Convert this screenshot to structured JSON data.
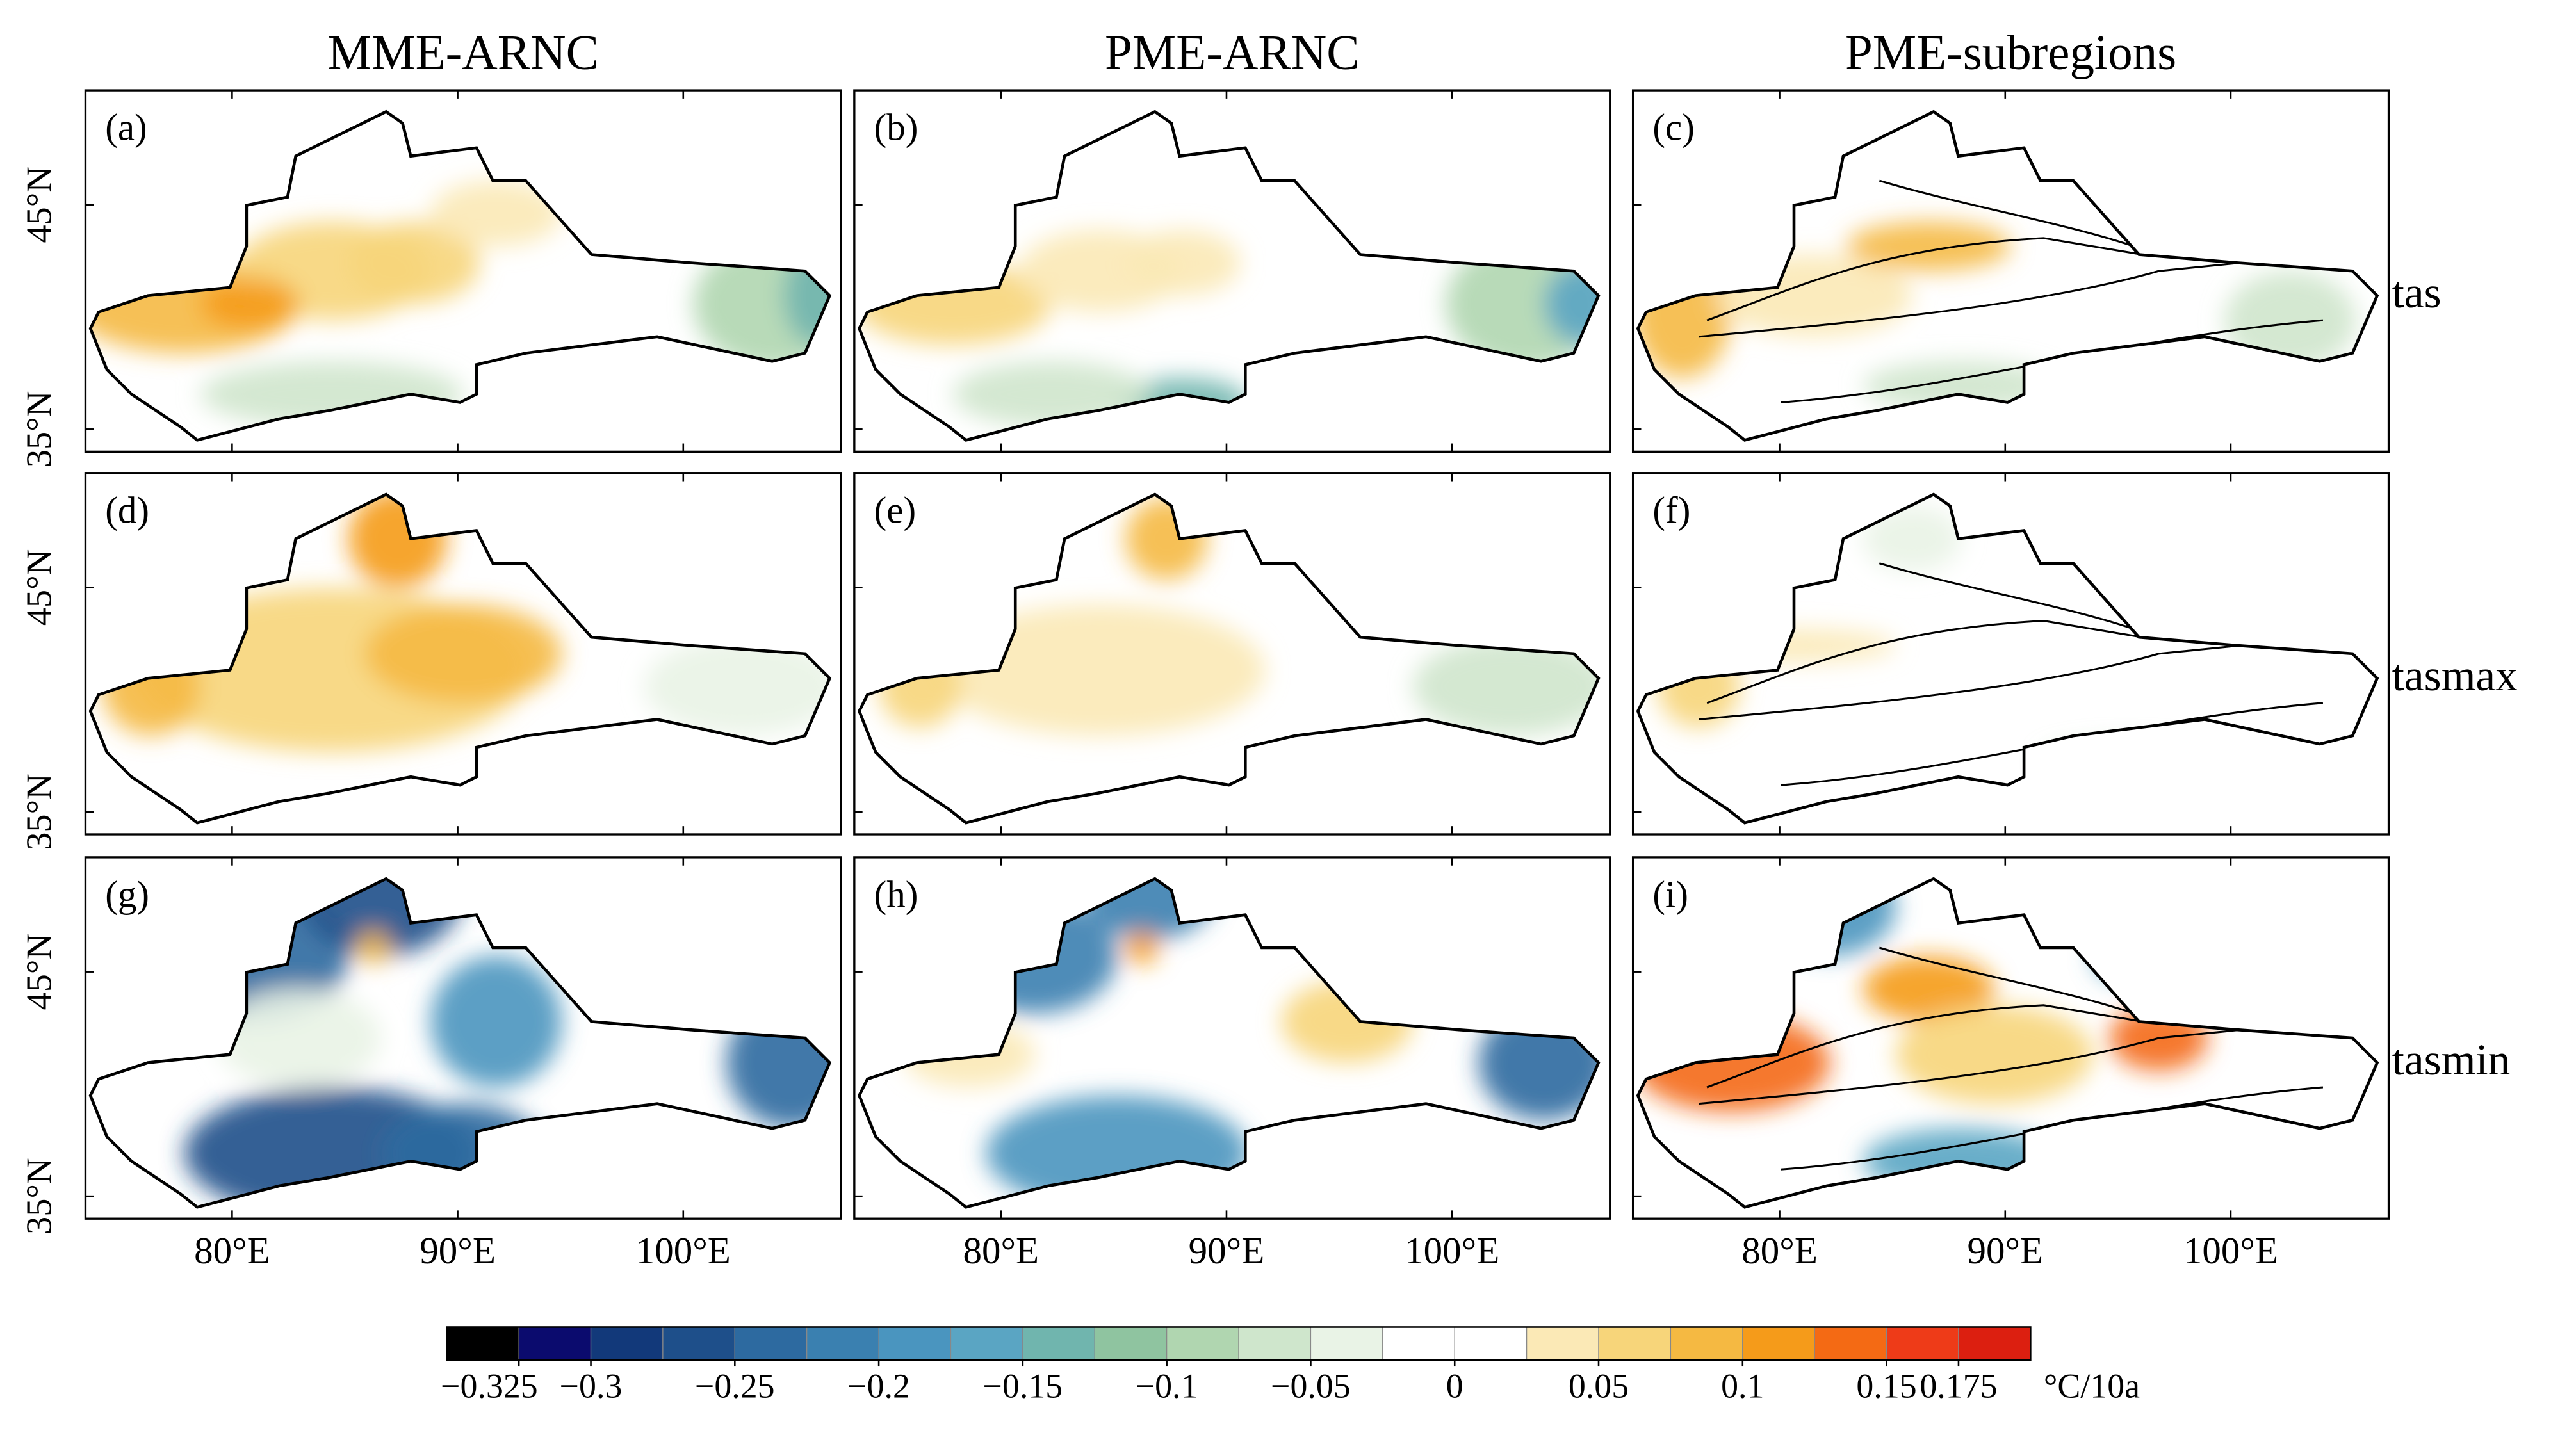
{
  "figure": {
    "column_titles": [
      "MME-ARNC",
      "PME-ARNC",
      "PME-subregions"
    ],
    "row_labels": [
      "tas",
      "tasmax",
      "tasmin"
    ],
    "panel_labels": [
      "(a)",
      "(b)",
      "(c)",
      "(d)",
      "(e)",
      "(f)",
      "(g)",
      "(h)",
      "(i)"
    ],
    "xlim": [
      73.5,
      107
    ],
    "ylim": [
      34,
      50.1
    ],
    "x_ticks": [
      {
        "value": 80,
        "label": "80°E"
      },
      {
        "value": 90,
        "label": "90°E"
      },
      {
        "value": 100,
        "label": "100°E"
      }
    ],
    "y_ticks": [
      {
        "value": 45,
        "label": "45°N"
      },
      {
        "value": 35,
        "label": "35°N"
      }
    ],
    "colorbar": {
      "colors": [
        "#000000",
        "#0b0b6e",
        "#12397a",
        "#1e4f8a",
        "#2d6aa0",
        "#3a80b0",
        "#4a95bf",
        "#5aa5c3",
        "#70b5ae",
        "#8fc4a0",
        "#b0d6b0",
        "#cfe6cc",
        "#e9f3e6",
        "#ffffff",
        "#ffffff",
        "#fbe9b6",
        "#f7d57a",
        "#f5b942",
        "#f59b1a",
        "#f46a14",
        "#ee3b18",
        "#dc1f10"
      ],
      "clim": [
        -0.35,
        0.2
      ],
      "ticks": [
        {
          "value": -0.325,
          "label": "−0.325"
        },
        {
          "value": -0.3,
          "label": "−0.3"
        },
        {
          "value": -0.25,
          "label": "−0.25"
        },
        {
          "value": -0.2,
          "label": "−0.2"
        },
        {
          "value": -0.15,
          "label": "−0.15"
        },
        {
          "value": -0.1,
          "label": "−0.1"
        },
        {
          "value": -0.05,
          "label": "−0.05"
        },
        0,
        0.05,
        0.1,
        0.15,
        0.175
      ],
      "unit": "°C/10a"
    }
  }
}
